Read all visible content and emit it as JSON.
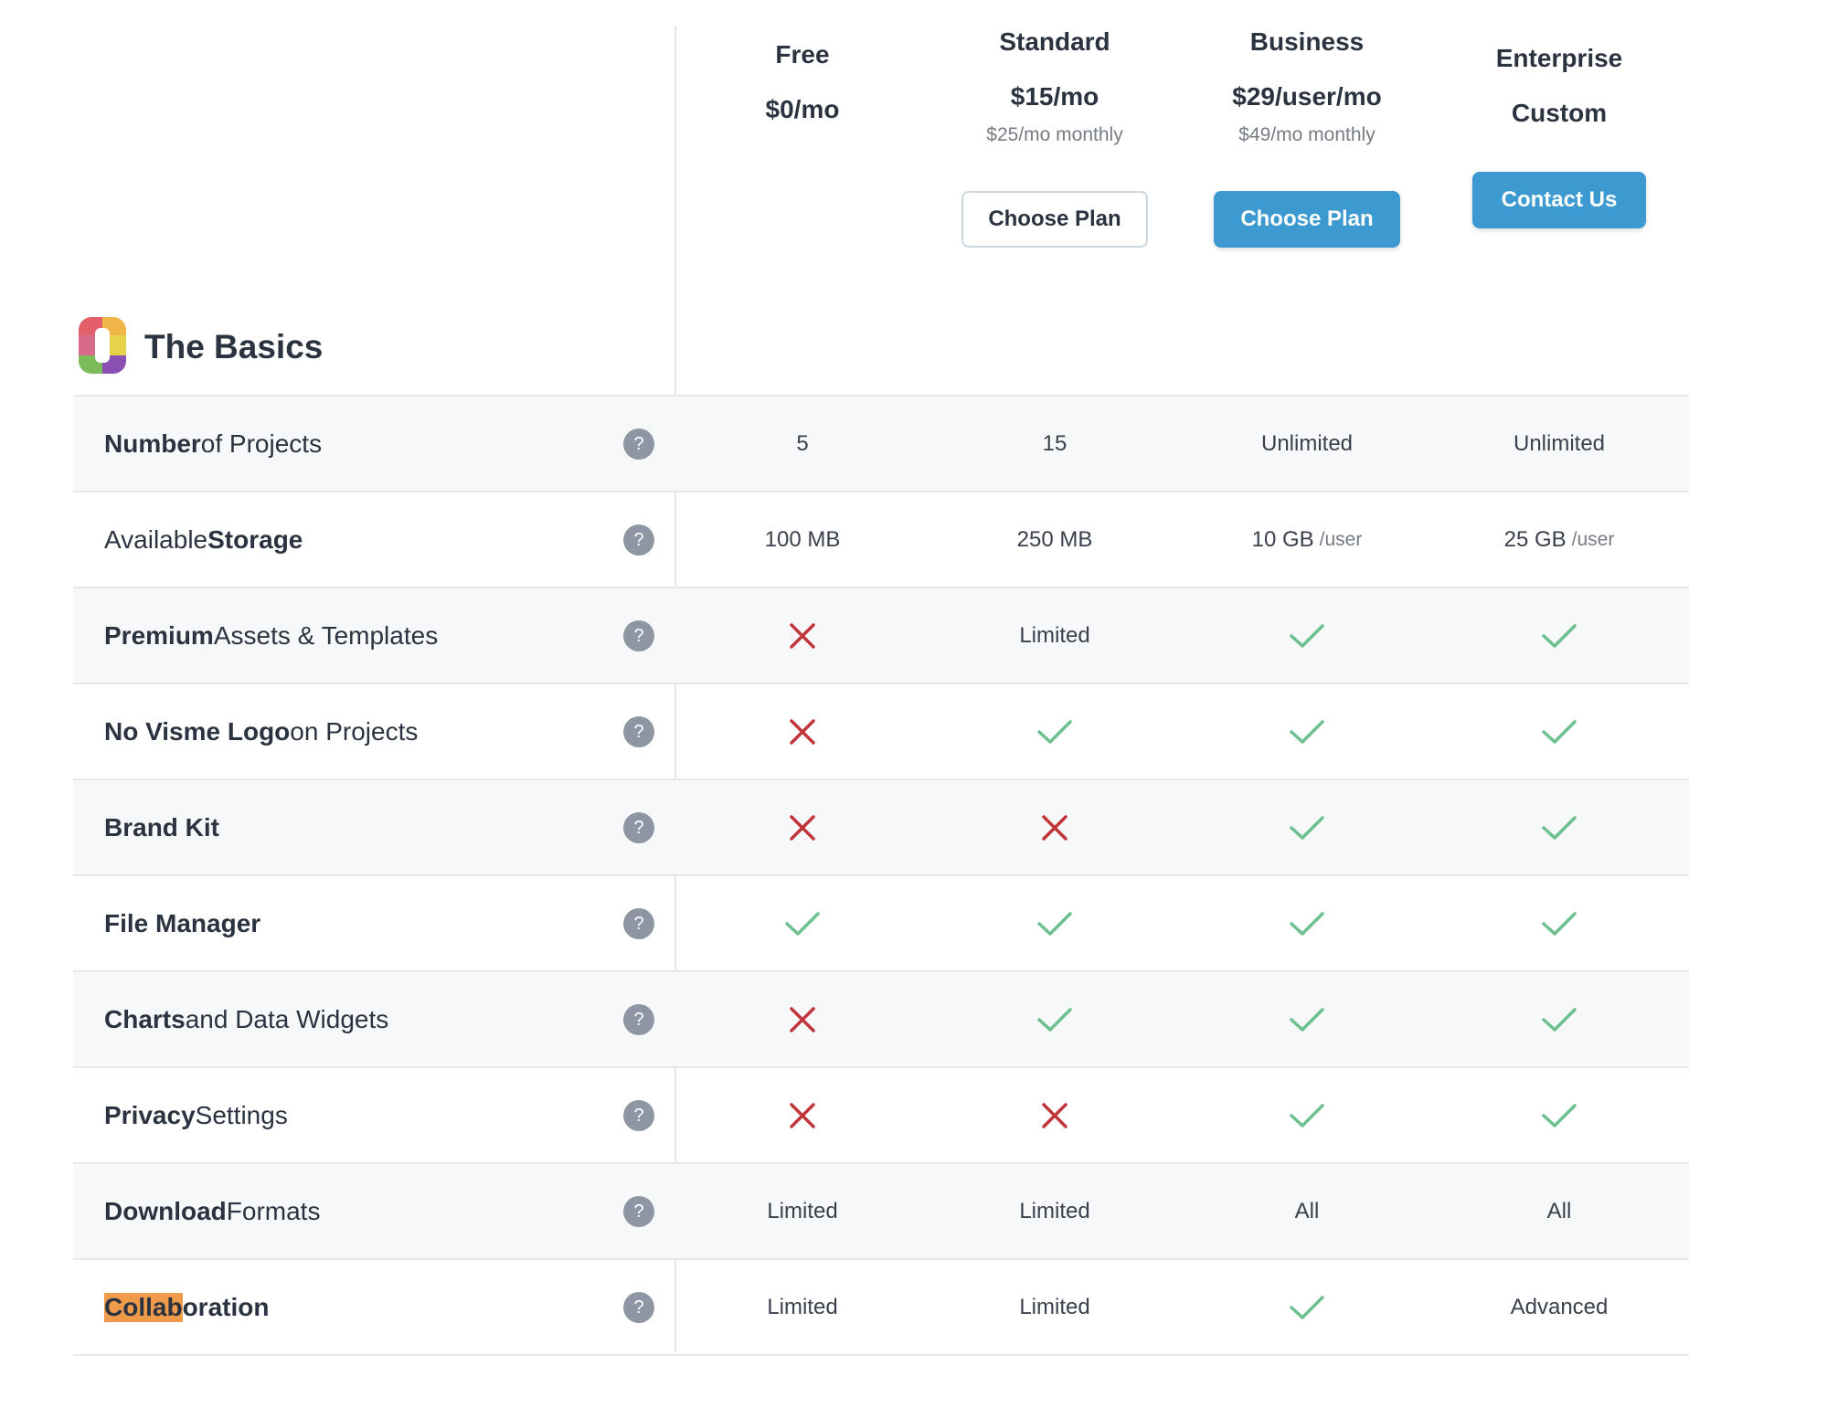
{
  "plans": [
    {
      "name": "Free",
      "price": "$0/mo",
      "sub": "",
      "button": ""
    },
    {
      "name": "Standard",
      "price": "$15/mo",
      "sub": "$25/mo monthly",
      "button": "Choose Plan"
    },
    {
      "name": "Business",
      "price": "$29/user/mo",
      "sub": "$49/mo monthly",
      "button": "Choose Plan"
    },
    {
      "name": "Enterprise",
      "price": "Custom",
      "sub": "",
      "button": "Contact Us"
    }
  ],
  "section": {
    "title": "The Basics",
    "icon": "visme-logo-icon"
  },
  "icons": {
    "check_color": "#6cbf8e",
    "cross_color": "#c0343a",
    "help_icon": "question-icon"
  },
  "accent": "#3d9ad1",
  "rows": [
    {
      "label": [
        {
          "t": "Number",
          "b": true
        },
        {
          "t": " of Projects"
        }
      ],
      "cells": [
        {
          "text": "5"
        },
        {
          "text": "15"
        },
        {
          "text": "Unlimited"
        },
        {
          "text": "Unlimited"
        }
      ]
    },
    {
      "label": [
        {
          "t": "Available "
        },
        {
          "t": "Storage",
          "b": true
        }
      ],
      "cells": [
        {
          "text": "100 MB"
        },
        {
          "text": "250 MB"
        },
        {
          "text": "10 GB",
          "unit": "/user"
        },
        {
          "text": "25 GB",
          "unit": "/user"
        }
      ]
    },
    {
      "label": [
        {
          "t": "Premium",
          "b": true
        },
        {
          "t": " Assets & Templates"
        }
      ],
      "cells": [
        {
          "icon": "cross"
        },
        {
          "text": "Limited"
        },
        {
          "icon": "check"
        },
        {
          "icon": "check"
        }
      ]
    },
    {
      "label": [
        {
          "t": "No Visme Logo",
          "b": true
        },
        {
          "t": " on Projects"
        }
      ],
      "cells": [
        {
          "icon": "cross"
        },
        {
          "icon": "check"
        },
        {
          "icon": "check"
        },
        {
          "icon": "check"
        }
      ]
    },
    {
      "label": [
        {
          "t": "Brand Kit",
          "b": true
        }
      ],
      "cells": [
        {
          "icon": "cross"
        },
        {
          "icon": "cross"
        },
        {
          "icon": "check"
        },
        {
          "icon": "check"
        }
      ]
    },
    {
      "label": [
        {
          "t": "File Manager",
          "b": true
        }
      ],
      "cells": [
        {
          "icon": "check"
        },
        {
          "icon": "check"
        },
        {
          "icon": "check"
        },
        {
          "icon": "check"
        }
      ]
    },
    {
      "label": [
        {
          "t": "Charts",
          "b": true
        },
        {
          "t": " and Data Widgets"
        }
      ],
      "cells": [
        {
          "icon": "cross"
        },
        {
          "icon": "check"
        },
        {
          "icon": "check"
        },
        {
          "icon": "check"
        }
      ]
    },
    {
      "label": [
        {
          "t": "Privacy",
          "b": true
        },
        {
          "t": " Settings"
        }
      ],
      "cells": [
        {
          "icon": "cross"
        },
        {
          "icon": "cross"
        },
        {
          "icon": "check"
        },
        {
          "icon": "check"
        }
      ]
    },
    {
      "label": [
        {
          "t": "Download",
          "b": true
        },
        {
          "t": " Formats"
        }
      ],
      "cells": [
        {
          "text": "Limited"
        },
        {
          "text": "Limited"
        },
        {
          "text": "All"
        },
        {
          "text": "All"
        }
      ]
    },
    {
      "label": [
        {
          "t": "Collab",
          "b": true,
          "hl": true
        },
        {
          "t": "oration",
          "b": true
        }
      ],
      "cells": [
        {
          "text": "Limited"
        },
        {
          "text": "Limited"
        },
        {
          "icon": "check"
        },
        {
          "text": "Advanced"
        }
      ]
    }
  ]
}
